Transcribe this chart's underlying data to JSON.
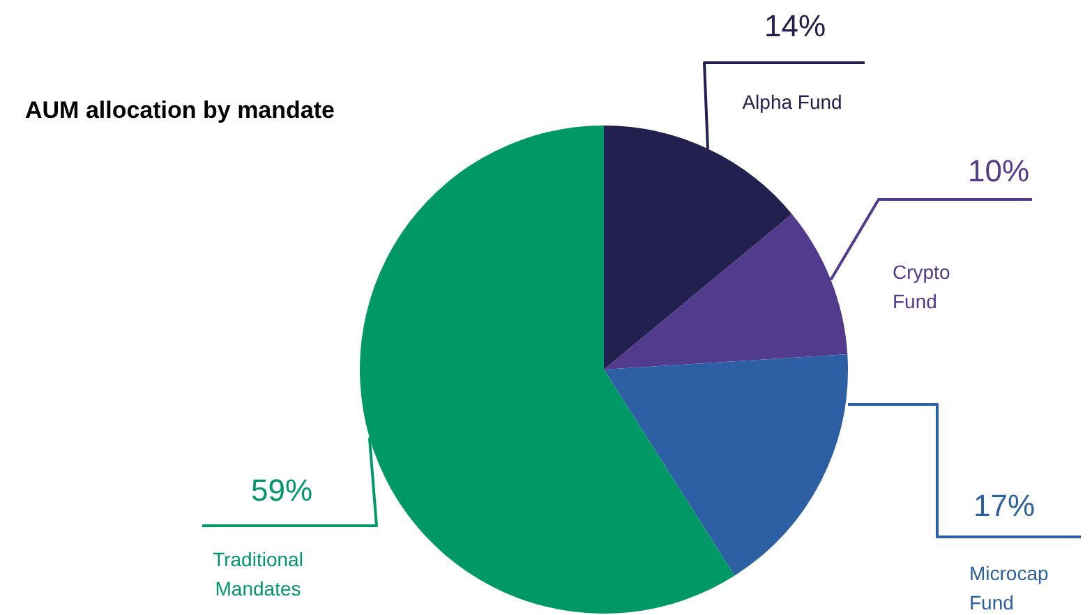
{
  "chart_data": {
    "type": "pie",
    "title": "AUM allocation by mandate",
    "categories": [
      "Alpha Fund",
      "Crypto Fund",
      "Microcap Fund",
      "Traditional Mandates"
    ],
    "values": [
      14,
      10,
      17,
      59
    ],
    "colors": [
      "#22204f",
      "#523a8c",
      "#2c5fa3",
      "#009966"
    ],
    "value_labels": [
      "14%",
      "10%",
      "17%",
      "59%"
    ],
    "legend": false
  }
}
